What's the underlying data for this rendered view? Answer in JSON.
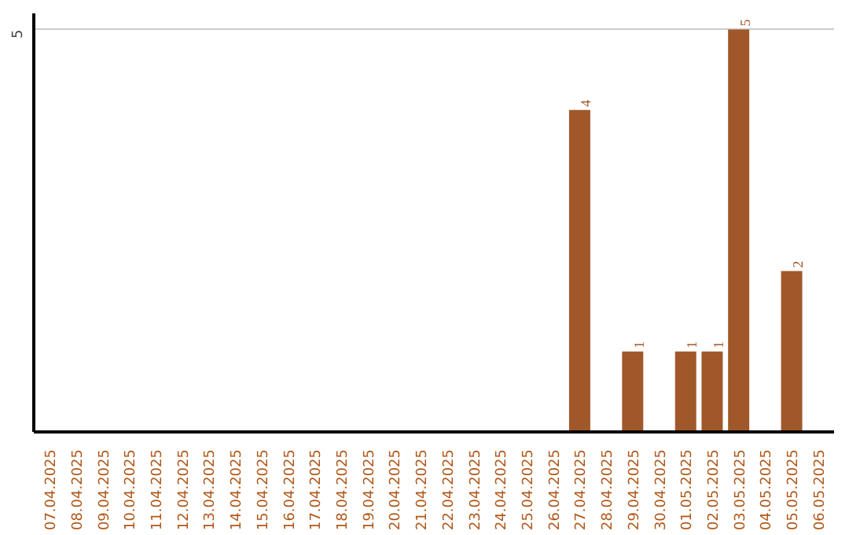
{
  "chart_data": {
    "type": "bar",
    "categories": [
      "07.04.2025",
      "08.04.2025",
      "09.04.2025",
      "10.04.2025",
      "11.04.2025",
      "12.04.2025",
      "13.04.2025",
      "14.04.2025",
      "15.04.2025",
      "16.04.2025",
      "17.04.2025",
      "18.04.2025",
      "19.04.2025",
      "20.04.2025",
      "21.04.2025",
      "22.04.2025",
      "23.04.2025",
      "24.04.2025",
      "25.04.2025",
      "26.04.2025",
      "27.04.2025",
      "28.04.2025",
      "29.04.2025",
      "30.04.2025",
      "01.05.2025",
      "02.05.2025",
      "03.05.2025",
      "04.05.2025",
      "05.05.2025",
      "06.05.2025"
    ],
    "values": [
      null,
      null,
      null,
      null,
      null,
      null,
      null,
      null,
      null,
      null,
      null,
      null,
      null,
      null,
      null,
      null,
      null,
      null,
      null,
      null,
      4,
      null,
      1,
      null,
      1,
      1,
      5,
      null,
      2,
      null
    ],
    "data_labels": true,
    "color": "#a0582a",
    "ylim": [
      0,
      5.2
    ],
    "yticks": [
      5
    ],
    "grid": "y"
  }
}
